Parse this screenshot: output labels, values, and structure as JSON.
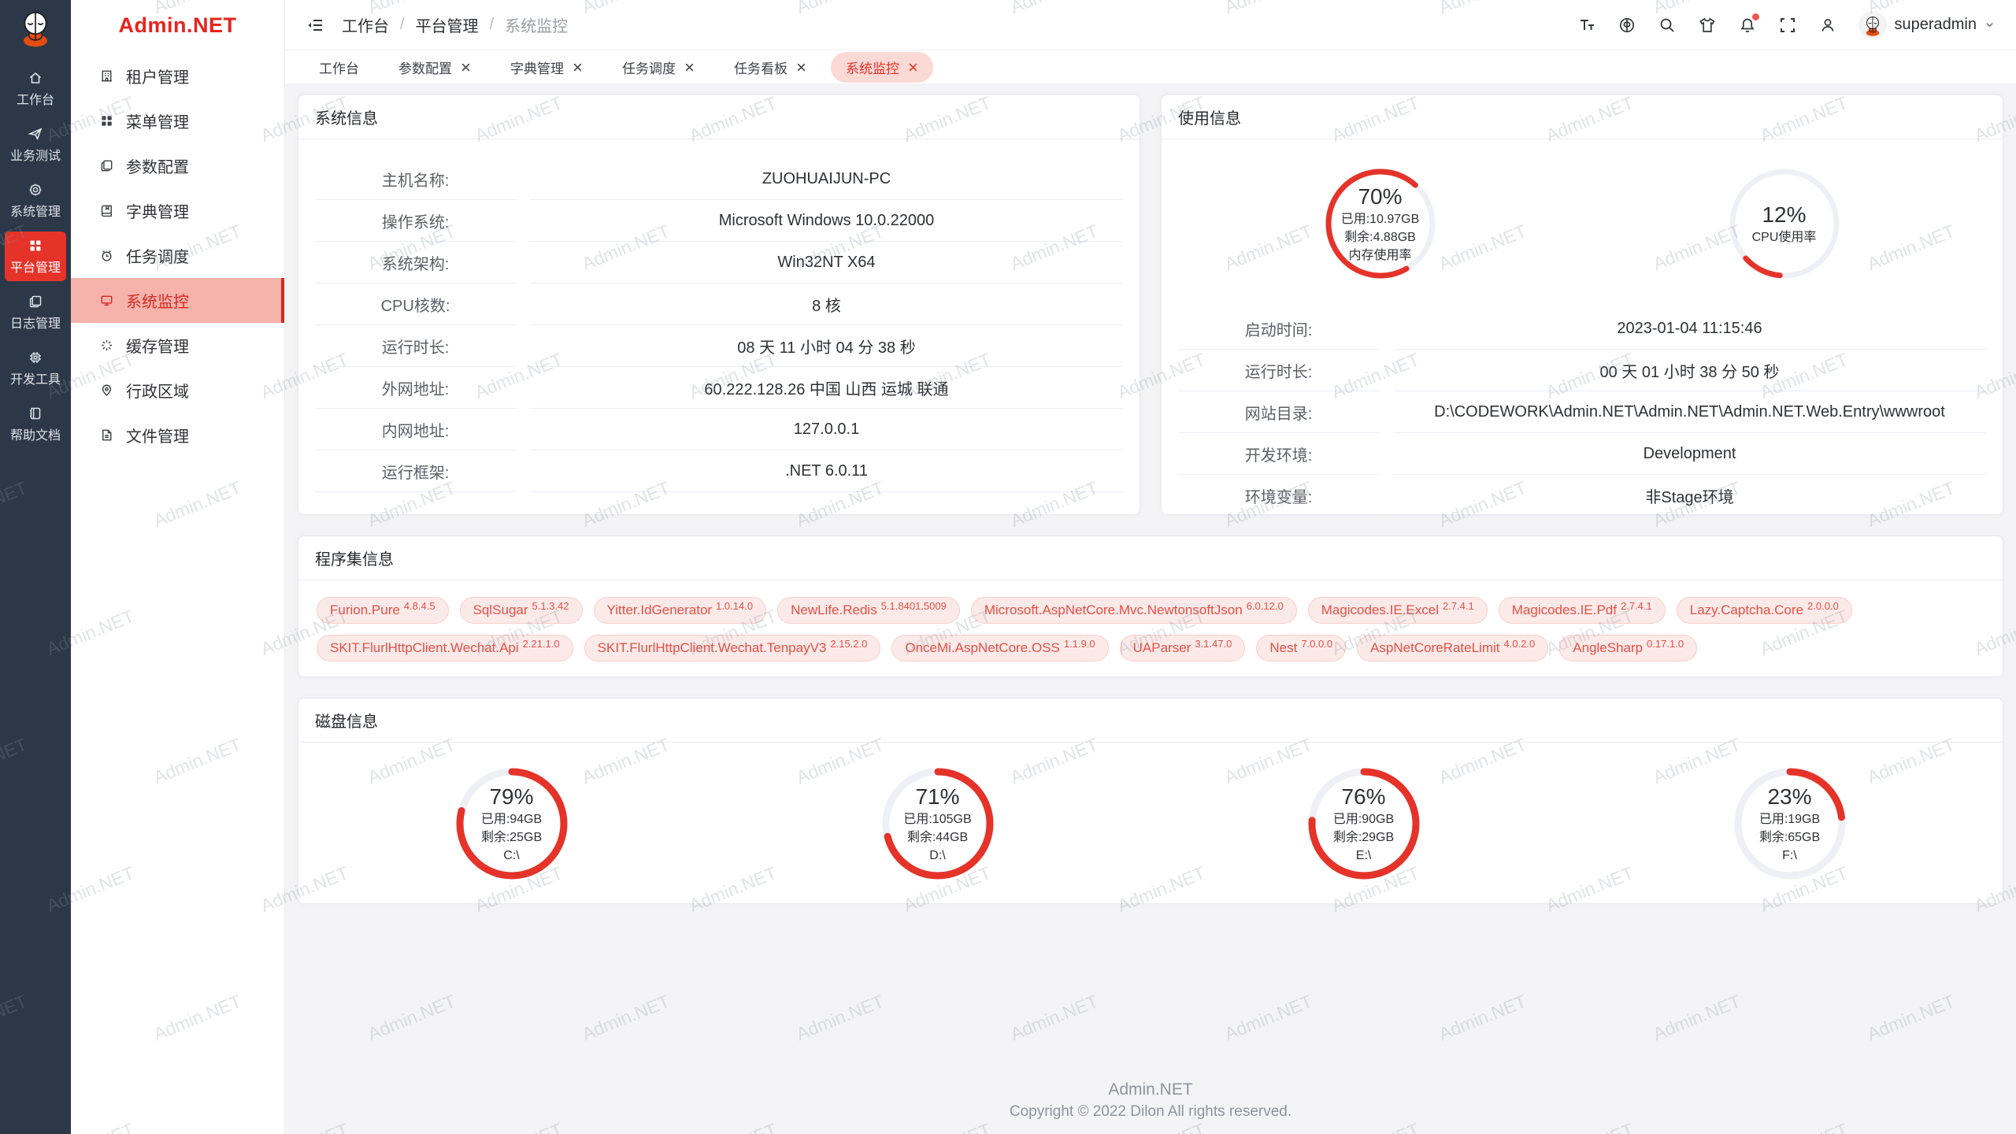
{
  "app": {
    "watermark": "Admin.NET"
  },
  "colors": {
    "accent": "#e5332a",
    "sidebar_active_bg": "#f5b3ac",
    "sidebar_active_text": "#d42a1f",
    "tag_bg": "#fceae9",
    "tag_text": "#e35045",
    "rail_bg": "#2c3847",
    "gauge_track": "#eef0f6"
  },
  "rail": {
    "items": [
      {
        "label": "工作台"
      },
      {
        "label": "业务测试"
      },
      {
        "label": "系统管理"
      },
      {
        "label": "平台管理"
      },
      {
        "label": "日志管理"
      },
      {
        "label": "开发工具"
      },
      {
        "label": "帮助文档"
      }
    ]
  },
  "sidebar": {
    "logo": "Admin.NET",
    "items": [
      {
        "label": "租户管理"
      },
      {
        "label": "菜单管理"
      },
      {
        "label": "参数配置"
      },
      {
        "label": "字典管理"
      },
      {
        "label": "任务调度"
      },
      {
        "label": "系统监控"
      },
      {
        "label": "缓存管理"
      },
      {
        "label": "行政区域"
      },
      {
        "label": "文件管理"
      }
    ]
  },
  "header": {
    "breadcrumb": [
      "工作台",
      "平台管理",
      "系统监控"
    ],
    "breadcrumb_separator": "/",
    "user": "superadmin"
  },
  "tabs": [
    {
      "label": "工作台"
    },
    {
      "label": "参数配置"
    },
    {
      "label": "字典管理"
    },
    {
      "label": "任务调度"
    },
    {
      "label": "任务看板"
    },
    {
      "label": "系统监控"
    }
  ],
  "cards": {
    "system": {
      "title": "系统信息",
      "rows": [
        {
          "label": "主机名称:",
          "value": "ZUOHUAIJUN-PC"
        },
        {
          "label": "操作系统:",
          "value": "Microsoft Windows 10.0.22000"
        },
        {
          "label": "系统架构:",
          "value": "Win32NT X64"
        },
        {
          "label": "CPU核数:",
          "value": "8 核"
        },
        {
          "label": "运行时长:",
          "value": "08 天 11 小时 04 分 38 秒"
        },
        {
          "label": "外网地址:",
          "value": "60.222.128.26 中国 山西 运城 联通"
        },
        {
          "label": "内网地址:",
          "value": "127.0.0.1"
        },
        {
          "label": "运行框架:",
          "value": ".NET 6.0.11"
        }
      ]
    },
    "usage": {
      "title": "使用信息",
      "gauges": [
        {
          "percent": 70,
          "lines": [
            "已用:10.97GB",
            "剩余:4.88GB",
            "内存使用率"
          ]
        },
        {
          "percent": 12,
          "lines": [
            "CPU使用率"
          ]
        }
      ],
      "rows": [
        {
          "label": "启动时间:",
          "value": "2023-01-04 11:15:46"
        },
        {
          "label": "运行时长:",
          "value": "00 天 01 小时 38 分 50 秒"
        },
        {
          "label": "网站目录:",
          "value": "D:\\CODEWORK\\Admin.NET\\Admin.NET\\Admin.NET.Web.Entry\\wwwroot"
        },
        {
          "label": "开发环境:",
          "value": "Development"
        },
        {
          "label": "环境变量:",
          "value": "非Stage环境"
        }
      ]
    },
    "assemblies": {
      "title": "程序集信息",
      "tags": [
        {
          "name": "Furion.Pure",
          "version": "4.8.4.5"
        },
        {
          "name": "SqlSugar",
          "version": "5.1.3.42"
        },
        {
          "name": "Yitter.IdGenerator",
          "version": "1.0.14.0"
        },
        {
          "name": "NewLife.Redis",
          "version": "5.1.8401.5009"
        },
        {
          "name": "Microsoft.AspNetCore.Mvc.NewtonsoftJson",
          "version": "6.0.12.0"
        },
        {
          "name": "Magicodes.IE.Excel",
          "version": "2.7.4.1"
        },
        {
          "name": "Magicodes.IE.Pdf",
          "version": "2.7.4.1"
        },
        {
          "name": "Lazy.Captcha.Core",
          "version": "2.0.0.0"
        },
        {
          "name": "SKIT.FlurlHttpClient.Wechat.Api",
          "version": "2.21.1.0"
        },
        {
          "name": "SKIT.FlurlHttpClient.Wechat.TenpayV3",
          "version": "2.15.2.0"
        },
        {
          "name": "OnceMi.AspNetCore.OSS",
          "version": "1.1.9.0"
        },
        {
          "name": "UAParser",
          "version": "3.1.47.0"
        },
        {
          "name": "Nest",
          "version": "7.0.0.0"
        },
        {
          "name": "AspNetCoreRateLimit",
          "version": "4.0.2.0"
        },
        {
          "name": "AngleSharp",
          "version": "0.17.1.0"
        }
      ]
    },
    "disks": {
      "title": "磁盘信息",
      "gauges": [
        {
          "percent": 79,
          "lines": [
            "已用:94GB",
            "剩余:25GB",
            "C:\\"
          ]
        },
        {
          "percent": 71,
          "lines": [
            "已用:105GB",
            "剩余:44GB",
            "D:\\"
          ]
        },
        {
          "percent": 76,
          "lines": [
            "已用:90GB",
            "剩余:29GB",
            "E:\\"
          ]
        },
        {
          "percent": 23,
          "lines": [
            "已用:19GB",
            "剩余:65GB",
            "F:\\"
          ]
        }
      ]
    }
  },
  "footer": {
    "line1": "Admin.NET",
    "line2": "Copyright © 2022 Dilon All rights reserved."
  }
}
